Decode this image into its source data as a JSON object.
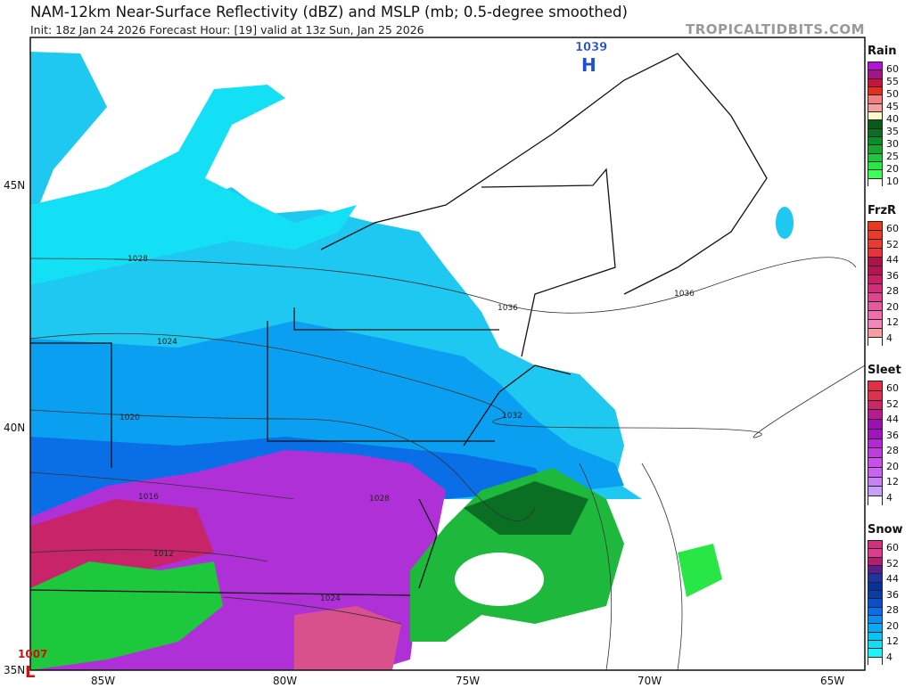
{
  "header": {
    "title": "NAM-12km Near-Surface Reflectivity (dBZ) and MSLP (mb; 0.5-degree smoothed)",
    "subtitle": "Init: 18z Jan 24 2026   Forecast Hour: [19]   valid at 13z Sun, Jan 25 2026",
    "brand": "TROPICALTIDBITS.COM"
  },
  "axes": {
    "lat_labels": [
      "45N",
      "40N",
      "35N"
    ],
    "lon_labels": [
      "85W",
      "80W",
      "75W",
      "70W",
      "65W"
    ]
  },
  "pressure_centers": [
    {
      "type": "H",
      "value": "1039",
      "color": "#1f4fd1"
    },
    {
      "type": "L",
      "value": "1007",
      "color": "#cc1111"
    }
  ],
  "isobar_labels": [
    "1028",
    "1024",
    "1020",
    "1016",
    "1012",
    "1028",
    "1024",
    "1036",
    "1036",
    "1032"
  ],
  "legends": [
    {
      "title": "Rain",
      "labels": [
        "60",
        "55",
        "50",
        "45",
        "40",
        "35",
        "30",
        "25",
        "20",
        "10"
      ],
      "colors": [
        "#b414d2",
        "#a0148c",
        "#c8143c",
        "#e03020",
        "#f08080",
        "#f5a0a0",
        "#fff8c8",
        "#0a5a1e",
        "#0a6e23",
        "#0f8c28",
        "#19a532",
        "#1ec83c",
        "#28e646",
        "#3cff5a",
        "#ffffff"
      ]
    },
    {
      "title": "FrzR",
      "labels": [
        "60",
        "52",
        "44",
        "36",
        "28",
        "20",
        "12",
        "4"
      ],
      "colors": [
        "#e63c1e",
        "#e63c28",
        "#e63c32",
        "#e6323c",
        "#aa1446",
        "#b41450",
        "#c81e64",
        "#d22d78",
        "#dc468c",
        "#e45a9b",
        "#ec6eaa",
        "#f287b9",
        "#f5a0a0",
        "#ffffff"
      ]
    },
    {
      "title": "Sleet",
      "labels": [
        "60",
        "52",
        "44",
        "36",
        "28",
        "20",
        "12",
        "4"
      ],
      "colors": [
        "#dc3246",
        "#dc3250",
        "#c82864",
        "#b41e8c",
        "#9b0fb4",
        "#a014be",
        "#b428d2",
        "#be3cdc",
        "#c850e6",
        "#c864f0",
        "#c882f5",
        "#c8a0f5",
        "#ffffff"
      ]
    },
    {
      "title": "Snow",
      "labels": [
        "60",
        "52",
        "44",
        "36",
        "28",
        "20",
        "12",
        "4"
      ],
      "colors": [
        "#d2327d",
        "#dc3c8c",
        "#b41e6e",
        "#5a1e8c",
        "#1e32a0",
        "#0a3296",
        "#0a3caa",
        "#0a4ec8",
        "#0a6ee6",
        "#0a8cf5",
        "#0aaaf5",
        "#0ac3f5",
        "#14dcf5",
        "#1ef5fa",
        "#ffffff"
      ]
    }
  ]
}
